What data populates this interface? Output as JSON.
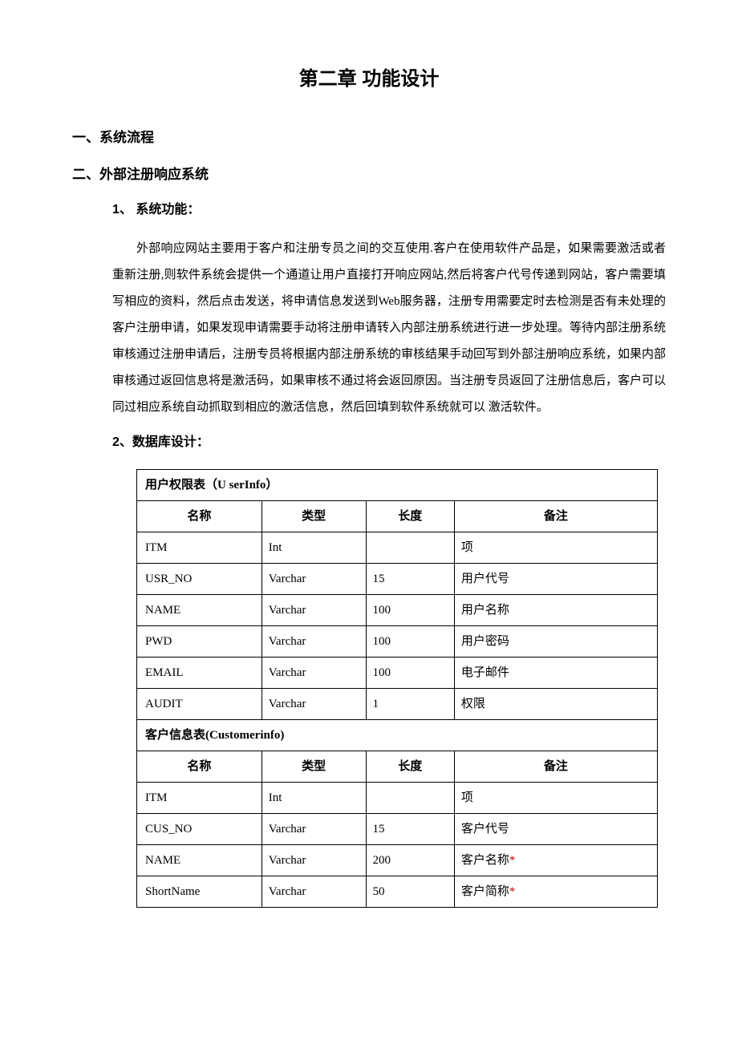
{
  "chapter_title": "第二章 功能设计",
  "sec1": "一、系统流程",
  "sec2": "二、外部注册响应系统",
  "sub1": "1、 系统功能：",
  "paragraph": "外部响应网站主要用于客户和注册专员之间的交互使用.客户在使用软件产品是，如果需要激活或者重新注册,则软件系统会提供一个通道让用户直接打开响应网站,然后将客户代号传递到网站，客户需要填写相应的资料，然后点击发送，将申请信息发送到Web服务器，注册专用需要定时去检测是否有未处理的客户注册申请，如果发现申请需要手动将注册申请转入内部注册系统进行进一步处理。等待内部注册系统审核通过注册申请后，注册专员将根据内部注册系统的审核结果手动回写到外部注册响应系统，如果内部审核通过返回信息将是激活码，如果审核不通过将会返回原因。当注册专员返回了注册信息后，客户可以同过相应系统自动抓取到相应的激活信息，然后回填到软件系统就可以 激活软件。",
  "sub2": "2、数据库设计：",
  "table": {
    "section1_label": "用户权限表（U serInfo）",
    "col_name": "名称",
    "col_type": "类型",
    "col_len": "长度",
    "col_remark": "备注",
    "rows1": [
      {
        "name": "ITM",
        "type": "Int",
        "len": "",
        "remark": "项",
        "star": false
      },
      {
        "name": "USR_NO",
        "type": "Varchar",
        "len": "15",
        "remark": "用户代号",
        "star": false
      },
      {
        "name": "NAME",
        "type": "Varchar",
        "len": "100",
        "remark": "用户名称",
        "star": false
      },
      {
        "name": "PWD",
        "type": "Varchar",
        "len": "100",
        "remark": "用户密码",
        "star": false
      },
      {
        "name": "EMAIL",
        "type": "Varchar",
        "len": "100",
        "remark": "电子邮件",
        "star": false
      },
      {
        "name": "AUDIT",
        "type": "Varchar",
        "len": "1",
        "remark": "权限",
        "star": false
      }
    ],
    "section2_label": "客户信息表(Customerinfo)",
    "rows2": [
      {
        "name": "ITM",
        "type": "Int",
        "len": "",
        "remark": "项",
        "star": false
      },
      {
        "name": "CUS_NO",
        "type": "Varchar",
        "len": "15",
        "remark": "客户代号",
        "star": false
      },
      {
        "name": "NAME",
        "type": "Varchar",
        "len": "200",
        "remark": "客户名称",
        "star": true
      },
      {
        "name": "ShortName",
        "type": "Varchar",
        "len": "50",
        "remark": "客户简称",
        "star": true
      }
    ]
  },
  "colors": {
    "text": "#000000",
    "background": "#ffffff",
    "border": "#000000",
    "star": "#c00000"
  }
}
